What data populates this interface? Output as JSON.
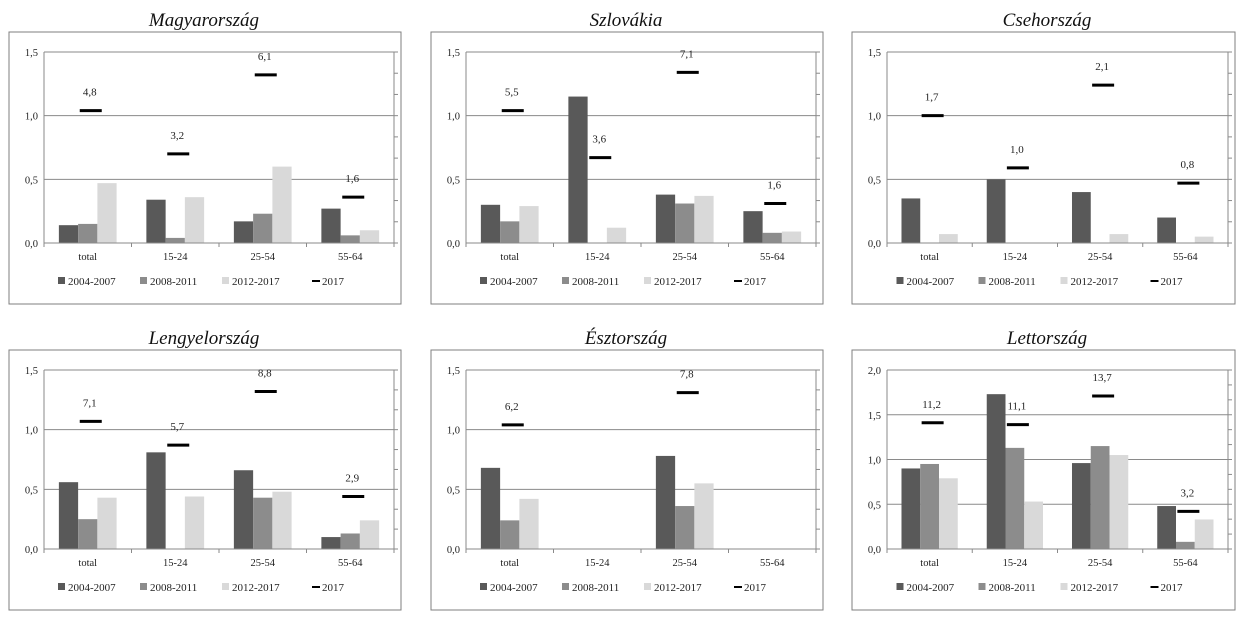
{
  "chart_data": [
    {
      "type": "bar",
      "title": "Magyarország",
      "categories": [
        "total",
        "15-24",
        "25-54",
        "55-64"
      ],
      "ylim": [
        0,
        1.5
      ],
      "yticks": [
        "0,0",
        "0,5",
        "1,0",
        "1,5"
      ],
      "series": [
        {
          "name": "2004-2007",
          "values": [
            0.14,
            0.34,
            0.17,
            0.27
          ]
        },
        {
          "name": "2008-2011",
          "values": [
            0.15,
            0.04,
            0.23,
            0.06
          ]
        },
        {
          "name": "2012-2017",
          "values": [
            0.47,
            0.36,
            0.6,
            0.1
          ]
        }
      ],
      "markers": {
        "name": "2017",
        "values": [
          1.04,
          0.7,
          1.32,
          0.36
        ],
        "labels": [
          "4,8",
          "3,2",
          "6,1",
          "1,6"
        ]
      }
    },
    {
      "type": "bar",
      "title": "Szlovákia",
      "categories": [
        "total",
        "15-24",
        "25-54",
        "55-64"
      ],
      "ylim": [
        0,
        1.5
      ],
      "yticks": [
        "0,0",
        "0,5",
        "1,0",
        "1,5"
      ],
      "series": [
        {
          "name": "2004-2007",
          "values": [
            0.3,
            1.15,
            0.38,
            0.25
          ]
        },
        {
          "name": "2008-2011",
          "values": [
            0.17,
            0.0,
            0.31,
            0.08
          ]
        },
        {
          "name": "2012-2017",
          "values": [
            0.29,
            0.12,
            0.37,
            0.09
          ]
        }
      ],
      "markers": {
        "name": "2017",
        "values": [
          1.04,
          0.67,
          1.34,
          0.31
        ],
        "labels": [
          "5,5",
          "3,6",
          "7,1",
          "1,6"
        ]
      }
    },
    {
      "type": "bar",
      "title": "Csehország",
      "categories": [
        "total",
        "15-24",
        "25-54",
        "55-64"
      ],
      "ylim": [
        0,
        1.5
      ],
      "yticks": [
        "0,0",
        "0,5",
        "1,0",
        "1,5"
      ],
      "series": [
        {
          "name": "2004-2007",
          "values": [
            0.35,
            0.5,
            0.4,
            0.2
          ]
        },
        {
          "name": "2008-2011",
          "values": [
            0.0,
            0.0,
            0.0,
            0.0
          ]
        },
        {
          "name": "2012-2017",
          "values": [
            0.07,
            0.0,
            0.07,
            0.05
          ]
        }
      ],
      "markers": {
        "name": "2017",
        "values": [
          1.0,
          0.59,
          1.24,
          0.47
        ],
        "labels": [
          "1,7",
          "1,0",
          "2,1",
          "0,8"
        ]
      }
    },
    {
      "type": "bar",
      "title": "Lengyelország",
      "categories": [
        "total",
        "15-24",
        "25-54",
        "55-64"
      ],
      "ylim": [
        0,
        1.5
      ],
      "yticks": [
        "0,0",
        "0,5",
        "1,0",
        "1,5"
      ],
      "series": [
        {
          "name": "2004-2007",
          "values": [
            0.56,
            0.81,
            0.66,
            0.1
          ]
        },
        {
          "name": "2008-2011",
          "values": [
            0.25,
            0.0,
            0.43,
            0.13
          ]
        },
        {
          "name": "2012-2017",
          "values": [
            0.43,
            0.44,
            0.48,
            0.24
          ]
        }
      ],
      "markers": {
        "name": "2017",
        "values": [
          1.07,
          0.87,
          1.32,
          0.44
        ],
        "labels": [
          "7,1",
          "5,7",
          "8,8",
          "2,9"
        ]
      }
    },
    {
      "type": "bar",
      "title": "Észtország",
      "categories": [
        "total",
        "15-24",
        "25-54",
        "55-64"
      ],
      "ylim": [
        0,
        1.5
      ],
      "yticks": [
        "0,0",
        "0,5",
        "1,0",
        "1,5"
      ],
      "series": [
        {
          "name": "2004-2007",
          "values": [
            0.68,
            null,
            0.78,
            null
          ]
        },
        {
          "name": "2008-2011",
          "values": [
            0.24,
            null,
            0.36,
            null
          ]
        },
        {
          "name": "2012-2017",
          "values": [
            0.42,
            null,
            0.55,
            null
          ]
        }
      ],
      "markers": {
        "name": "2017",
        "values": [
          1.04,
          null,
          1.31,
          null
        ],
        "labels": [
          "6,2",
          "",
          "7,8",
          ""
        ]
      }
    },
    {
      "type": "bar",
      "title": "Lettország",
      "categories": [
        "total",
        "15-24",
        "25-54",
        "55-64"
      ],
      "ylim": [
        0,
        2.0
      ],
      "yticks": [
        "0,0",
        "0,5",
        "1,0",
        "1,5",
        "2,0"
      ],
      "series": [
        {
          "name": "2004-2007",
          "values": [
            0.9,
            1.73,
            0.96,
            0.48
          ]
        },
        {
          "name": "2008-2011",
          "values": [
            0.95,
            1.13,
            1.15,
            0.08
          ]
        },
        {
          "name": "2012-2017",
          "values": [
            0.79,
            0.53,
            1.05,
            0.33
          ]
        }
      ],
      "markers": {
        "name": "2017",
        "values": [
          1.41,
          1.39,
          1.71,
          0.42
        ],
        "labels": [
          "11,2",
          "11,1",
          "13,7",
          "3,2"
        ]
      }
    }
  ],
  "legend": [
    "2004-2007",
    "2008-2011",
    "2012-2017",
    "2017"
  ],
  "colors": {
    "2004-2007": "#595959",
    "2008-2011": "#8c8c8c",
    "2012-2017": "#d9d9d9",
    "2017": "#000000"
  }
}
